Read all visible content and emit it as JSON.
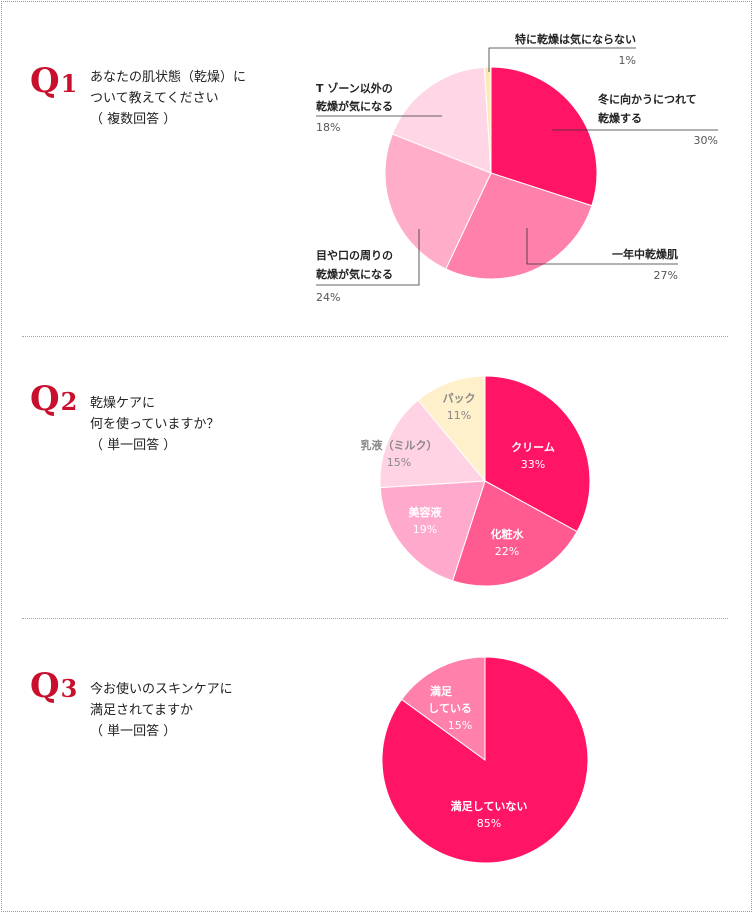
{
  "colors": {
    "q1": [
      "#ff1466",
      "#ff80aa",
      "#ffadc9",
      "#ffd6e6",
      "#ffe8b8"
    ],
    "q2": [
      "#ff1466",
      "#ff5b91",
      "#ffaacc",
      "#ffd2e4",
      "#fff0cc"
    ],
    "q3": [
      "#ff1466",
      "#ff80aa"
    ]
  },
  "questions": [
    {
      "label": "Q",
      "number": "1",
      "text": "あなたの肌状態（乾燥）に\nついて教えてください\n（ 複数回答 ）"
    },
    {
      "label": "Q",
      "number": "2",
      "text": "乾燥ケアに\n何を使っていますか？\n（ 単一回答 ）"
    },
    {
      "label": "Q",
      "number": "3",
      "text": "今お使いのスキンケアに\n満足されてますか\n（ 単一回答 ）"
    }
  ],
  "chart_data": [
    {
      "type": "pie",
      "categories": [
        "冬に向かうにつれて乾燥する",
        "一年中乾燥肌",
        "目や口の周りの乾燥が気になる",
        "Tゾーン以外の乾燥が気になる",
        "特に乾燥は気にならない"
      ],
      "values": [
        30,
        27,
        24,
        18,
        1
      ],
      "labels": [
        {
          "lines": [
            "冬に向かうにつれて",
            "乾燥する"
          ],
          "pct": "30%"
        },
        {
          "lines": [
            "一年中乾燥肌"
          ],
          "pct": "27%"
        },
        {
          "lines": [
            "目や口の周りの",
            "乾燥が気になる"
          ],
          "pct": "24%"
        },
        {
          "lines": [
            "T ゾーン以外の",
            "乾燥が気になる"
          ],
          "pct": "18%"
        },
        {
          "lines": [
            "特に乾燥は気にならない"
          ],
          "pct": "1%"
        }
      ]
    },
    {
      "type": "pie",
      "categories": [
        "クリーム",
        "化粧水",
        "美容液",
        "乳液（ミルク）",
        "パック"
      ],
      "values": [
        33,
        22,
        19,
        15,
        11
      ],
      "labels": [
        {
          "lines": [
            "クリーム"
          ],
          "pct": "33%"
        },
        {
          "lines": [
            "化粧水"
          ],
          "pct": "22%"
        },
        {
          "lines": [
            "美容液"
          ],
          "pct": "19%"
        },
        {
          "lines": [
            "乳液（ミルク）"
          ],
          "pct": "15%"
        },
        {
          "lines": [
            "パック"
          ],
          "pct": "11%"
        }
      ]
    },
    {
      "type": "pie",
      "categories": [
        "満足していない",
        "満足している"
      ],
      "values": [
        85,
        15
      ],
      "labels": [
        {
          "lines": [
            "満足していない"
          ],
          "pct": "85%"
        },
        {
          "lines": [
            "満足",
            "している"
          ],
          "pct": "15%"
        }
      ]
    }
  ]
}
